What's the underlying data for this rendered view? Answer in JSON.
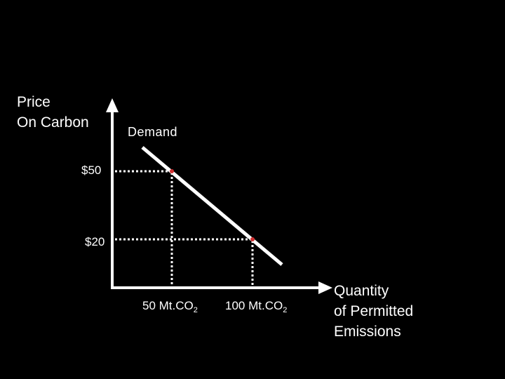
{
  "y_axis": {
    "title_line1": "Price",
    "title_line2": "On Carbon"
  },
  "x_axis": {
    "title_line1": "Quantity",
    "title_line2": "of Permitted",
    "title_line3": "Emissions"
  },
  "curve": {
    "label": "Demand",
    "color": "#ffffff"
  },
  "ticks": {
    "y_50": "$50",
    "y_20": "$20",
    "x_50_main": "50 Mt.CO",
    "x_50_sub": "2",
    "x_100_main": "100 Mt.CO",
    "x_100_sub": "2"
  },
  "points": [
    {
      "quantity": "50 Mt.CO2",
      "price": "$50",
      "marker_color": "#d03030"
    },
    {
      "quantity": "100 Mt.CO2",
      "price": "$20",
      "marker_color": "#d03030"
    }
  ],
  "colors": {
    "background": "#000000",
    "axis": "#ffffff",
    "guides": "#ffffff",
    "markers": "#d03030"
  }
}
